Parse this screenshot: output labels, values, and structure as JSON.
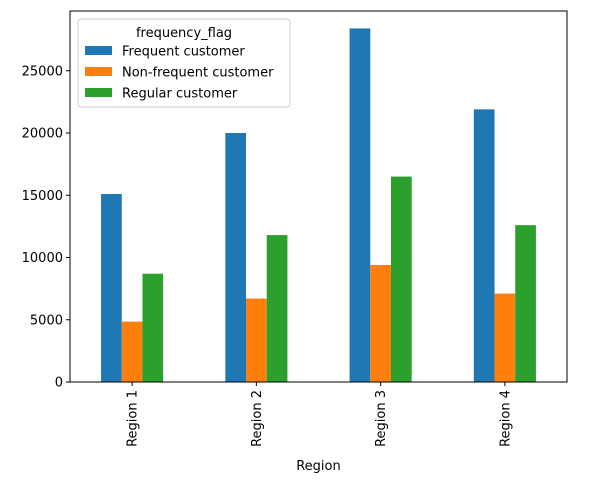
{
  "chart_data": {
    "type": "bar",
    "title": "",
    "xlabel": "Region",
    "ylabel": "",
    "categories": [
      "Region 1",
      "Region 2",
      "Region 3",
      "Region 4"
    ],
    "series": [
      {
        "name": "Frequent customer",
        "values": [
          15100,
          20000,
          28400,
          21900
        ],
        "color": "#1f77b4"
      },
      {
        "name": "Non-frequent customer",
        "values": [
          4850,
          6700,
          9400,
          7100
        ],
        "color": "#ff7f0e"
      },
      {
        "name": "Regular customer",
        "values": [
          8700,
          11800,
          16500,
          12600
        ],
        "color": "#2ca02c"
      }
    ],
    "ylim": [
      0,
      29800
    ],
    "yticks": [
      0,
      5000,
      10000,
      15000,
      20000,
      25000
    ],
    "legend": {
      "title": "frequency_flag",
      "placement": "top-left"
    },
    "grid": false
  }
}
